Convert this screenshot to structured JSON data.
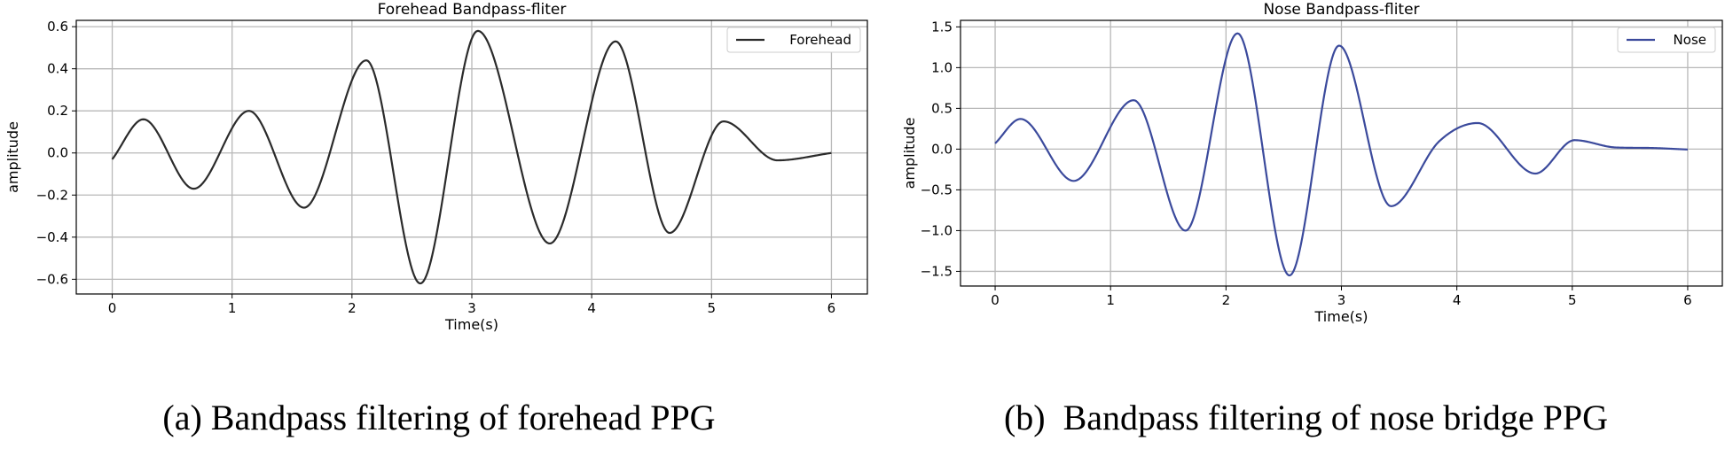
{
  "chart_data": [
    {
      "type": "line",
      "title": "Forehead Bandpass-fliter",
      "xlabel": "Time(s)",
      "ylabel": "amplitude",
      "xlim": [
        -0.3,
        6.3
      ],
      "ylim": [
        -0.67,
        0.63
      ],
      "xticks": [
        0,
        1,
        2,
        3,
        4,
        5,
        6
      ],
      "xtick_labels": [
        "0",
        "1",
        "2",
        "3",
        "4",
        "5",
        "6"
      ],
      "yticks": [
        -0.6,
        -0.4,
        -0.2,
        0.0,
        0.2,
        0.4,
        0.6
      ],
      "ytick_labels": [
        "−0.6",
        "−0.4",
        "−0.2",
        "0.0",
        "0.2",
        "0.4",
        "0.6"
      ],
      "grid": true,
      "legend_position": "top-right",
      "caption": "(a) Bandpass filtering of forehead PPG",
      "series": [
        {
          "name": "Forehead",
          "color": "#2b2b2b",
          "points": [
            [
              0.0,
              -0.03
            ],
            [
              0.26,
              0.16
            ],
            [
              0.68,
              -0.17
            ],
            [
              1.14,
              0.2
            ],
            [
              1.6,
              -0.26
            ],
            [
              2.12,
              0.44
            ],
            [
              2.57,
              -0.62
            ],
            [
              3.05,
              0.58
            ],
            [
              3.65,
              -0.43
            ],
            [
              4.2,
              0.53
            ],
            [
              4.65,
              -0.38
            ],
            [
              5.1,
              0.15
            ],
            [
              5.55,
              -0.035
            ],
            [
              6.0,
              0.0
            ]
          ]
        }
      ]
    },
    {
      "type": "line",
      "title": "Nose Bandpass-fliter",
      "xlabel": "Time(s)",
      "ylabel": "amplitude",
      "xlim": [
        -0.3,
        6.3
      ],
      "ylim": [
        -1.68,
        1.58
      ],
      "xticks": [
        0,
        1,
        2,
        3,
        4,
        5,
        6
      ],
      "xtick_labels": [
        "0",
        "1",
        "2",
        "3",
        "4",
        "5",
        "6"
      ],
      "yticks": [
        -1.5,
        -1.0,
        -0.5,
        0.0,
        0.5,
        1.0,
        1.5
      ],
      "ytick_labels": [
        "−1.5",
        "−1.0",
        "−0.5",
        "0.0",
        "0.5",
        "1.0",
        "1.5"
      ],
      "grid": true,
      "legend_position": "top-right",
      "caption": "(b)  Bandpass filtering of nose bridge PPG",
      "series": [
        {
          "name": "Nose",
          "color": "#3b4a9c",
          "points": [
            [
              0.0,
              0.07
            ],
            [
              0.22,
              0.37
            ],
            [
              0.68,
              -0.39
            ],
            [
              1.2,
              0.6
            ],
            [
              1.65,
              -1.0
            ],
            [
              2.1,
              1.42
            ],
            [
              2.55,
              -1.55
            ],
            [
              2.98,
              1.27
            ],
            [
              3.43,
              -0.7
            ],
            [
              3.85,
              0.1
            ],
            [
              4.18,
              0.32
            ],
            [
              4.68,
              -0.3
            ],
            [
              5.02,
              0.11
            ],
            [
              5.38,
              0.02
            ],
            [
              5.65,
              0.015
            ],
            [
              6.0,
              -0.005
            ]
          ]
        }
      ]
    }
  ]
}
